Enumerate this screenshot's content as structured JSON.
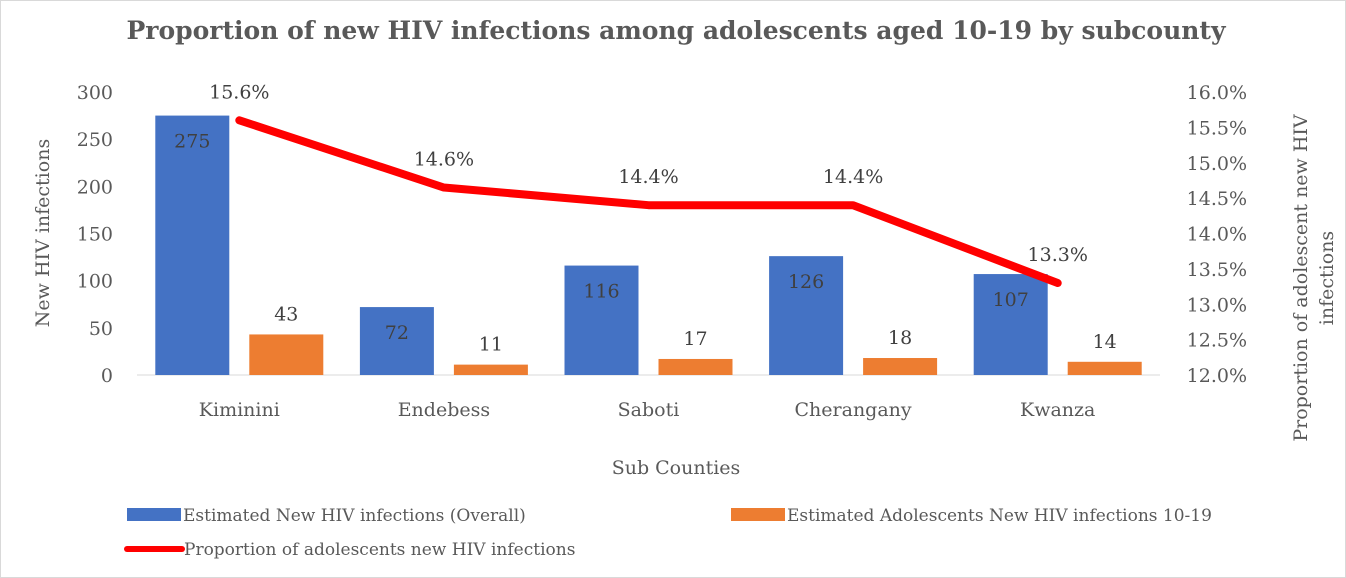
{
  "chart_data": {
    "type": "bar",
    "title": "Proportion of new HIV infections among adolescents aged 10-19 by subcounty",
    "xlabel": "Sub Counties",
    "ylabel": "New HIV infections",
    "y2label": "Proportion of adolescent new HIV infections",
    "categories": [
      "Kiminini",
      "Endebess",
      "Saboti",
      "Cherangany",
      "Kwanza"
    ],
    "ylim": [
      0,
      300
    ],
    "yticks": [
      "0",
      "50",
      "100",
      "150",
      "200",
      "250",
      "300"
    ],
    "y2lim": [
      12.0,
      16.0
    ],
    "y2ticks": [
      "12.0%",
      "12.5%",
      "13.0%",
      "13.5%",
      "14.0%",
      "14.5%",
      "15.0%",
      "15.5%",
      "16.0%"
    ],
    "series": [
      {
        "name": "Estimated New HIV infections (Overall)",
        "type": "bar",
        "color": "#4472c4",
        "values": [
          275,
          72,
          116,
          126,
          107
        ],
        "labels": [
          "275",
          "72",
          "116",
          "126",
          "107"
        ]
      },
      {
        "name": "Estimated Adolescents New HIV infections 10-19",
        "type": "bar",
        "color": "#ed7d31",
        "values": [
          43,
          11,
          17,
          18,
          14
        ],
        "labels": [
          "43",
          "11",
          "17",
          "18",
          "14"
        ]
      },
      {
        "name": "Proportion of adolescents new HIV infections",
        "type": "line",
        "axis": "secondary",
        "color": "#ff0000",
        "values": [
          15.6,
          14.65,
          14.4,
          14.4,
          13.3
        ],
        "labels": [
          "15.6%",
          "14.6%",
          "14.4%",
          "14.4%",
          "13.3%"
        ]
      }
    ],
    "grid": false,
    "legend_position": "bottom"
  }
}
